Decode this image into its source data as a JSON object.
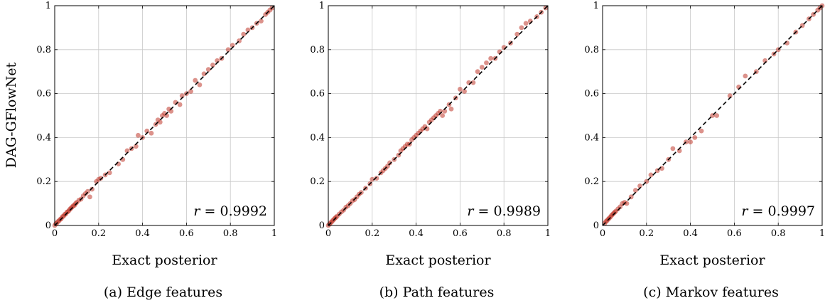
{
  "figure": {
    "ylabel": "DAG-GFlowNet",
    "xlabel": "Exact posterior",
    "point_color": "#c0392b",
    "diag_color": "#000000",
    "grid_color": "#c8c8c8"
  },
  "chart_data": [
    {
      "type": "scatter",
      "caption": "(a) Edge features",
      "xlabel": "Exact posterior",
      "ylabel": "DAG-GFlowNet",
      "xlim": [
        0,
        1
      ],
      "ylim": [
        0,
        1
      ],
      "xticks": [
        "0",
        "0.2",
        "0.4",
        "0.6",
        "0.8",
        "1"
      ],
      "yticks": [
        "0",
        "0.2",
        "0.4",
        "0.6",
        "0.8",
        "1"
      ],
      "grid": true,
      "diagonal": true,
      "annotation": "r = 0.9992",
      "points": [
        [
          0.0,
          0.0
        ],
        [
          0.005,
          0.008
        ],
        [
          0.01,
          0.012
        ],
        [
          0.015,
          0.018
        ],
        [
          0.02,
          0.022
        ],
        [
          0.025,
          0.028
        ],
        [
          0.03,
          0.031
        ],
        [
          0.035,
          0.04
        ],
        [
          0.04,
          0.042
        ],
        [
          0.045,
          0.05
        ],
        [
          0.05,
          0.052
        ],
        [
          0.055,
          0.06
        ],
        [
          0.06,
          0.063
        ],
        [
          0.065,
          0.068
        ],
        [
          0.07,
          0.075
        ],
        [
          0.075,
          0.079
        ],
        [
          0.08,
          0.085
        ],
        [
          0.085,
          0.09
        ],
        [
          0.09,
          0.092
        ],
        [
          0.095,
          0.1
        ],
        [
          0.1,
          0.105
        ],
        [
          0.11,
          0.115
        ],
        [
          0.12,
          0.12
        ],
        [
          0.13,
          0.135
        ],
        [
          0.14,
          0.145
        ],
        [
          0.15,
          0.155
        ],
        [
          0.16,
          0.13
        ],
        [
          0.17,
          0.165
        ],
        [
          0.19,
          0.2
        ],
        [
          0.2,
          0.21
        ],
        [
          0.21,
          0.215
        ],
        [
          0.23,
          0.23
        ],
        [
          0.25,
          0.24
        ],
        [
          0.29,
          0.28
        ],
        [
          0.31,
          0.3
        ],
        [
          0.33,
          0.34
        ],
        [
          0.35,
          0.35
        ],
        [
          0.37,
          0.36
        ],
        [
          0.38,
          0.41
        ],
        [
          0.4,
          0.4
        ],
        [
          0.42,
          0.43
        ],
        [
          0.44,
          0.42
        ],
        [
          0.46,
          0.46
        ],
        [
          0.47,
          0.48
        ],
        [
          0.48,
          0.47
        ],
        [
          0.49,
          0.5
        ],
        [
          0.5,
          0.51
        ],
        [
          0.51,
          0.5
        ],
        [
          0.52,
          0.53
        ],
        [
          0.53,
          0.52
        ],
        [
          0.55,
          0.56
        ],
        [
          0.57,
          0.55
        ],
        [
          0.58,
          0.59
        ],
        [
          0.6,
          0.6
        ],
        [
          0.62,
          0.61
        ],
        [
          0.64,
          0.66
        ],
        [
          0.66,
          0.64
        ],
        [
          0.68,
          0.69
        ],
        [
          0.7,
          0.71
        ],
        [
          0.72,
          0.73
        ],
        [
          0.74,
          0.75
        ],
        [
          0.76,
          0.76
        ],
        [
          0.79,
          0.8
        ],
        [
          0.81,
          0.82
        ],
        [
          0.84,
          0.84
        ],
        [
          0.86,
          0.87
        ],
        [
          0.88,
          0.89
        ],
        [
          0.9,
          0.9
        ],
        [
          0.92,
          0.92
        ],
        [
          0.94,
          0.93
        ],
        [
          0.96,
          0.96
        ],
        [
          0.97,
          0.97
        ],
        [
          0.98,
          0.98
        ],
        [
          0.99,
          0.99
        ]
      ]
    },
    {
      "type": "scatter",
      "caption": "(b) Path features",
      "xlabel": "Exact posterior",
      "ylabel": "",
      "xlim": [
        0,
        1
      ],
      "ylim": [
        0,
        1
      ],
      "xticks": [
        "0",
        "0.2",
        "0.4",
        "0.6",
        "0.8",
        "1"
      ],
      "yticks": [
        "0",
        "0.2",
        "0.4",
        "0.6",
        "0.8",
        "1"
      ],
      "grid": true,
      "diagonal": true,
      "annotation": "r = 0.9989",
      "points": [
        [
          0.0,
          0.0
        ],
        [
          0.005,
          0.006
        ],
        [
          0.01,
          0.012
        ],
        [
          0.015,
          0.016
        ],
        [
          0.02,
          0.022
        ],
        [
          0.025,
          0.027
        ],
        [
          0.03,
          0.033
        ],
        [
          0.035,
          0.037
        ],
        [
          0.04,
          0.042
        ],
        [
          0.05,
          0.052
        ],
        [
          0.06,
          0.062
        ],
        [
          0.07,
          0.07
        ],
        [
          0.08,
          0.083
        ],
        [
          0.09,
          0.09
        ],
        [
          0.1,
          0.1
        ],
        [
          0.11,
          0.112
        ],
        [
          0.12,
          0.118
        ],
        [
          0.13,
          0.13
        ],
        [
          0.14,
          0.142
        ],
        [
          0.15,
          0.15
        ],
        [
          0.17,
          0.17
        ],
        [
          0.19,
          0.19
        ],
        [
          0.2,
          0.21
        ],
        [
          0.22,
          0.215
        ],
        [
          0.24,
          0.24
        ],
        [
          0.25,
          0.25
        ],
        [
          0.26,
          0.26
        ],
        [
          0.27,
          0.27
        ],
        [
          0.28,
          0.285
        ],
        [
          0.3,
          0.3
        ],
        [
          0.32,
          0.32
        ],
        [
          0.33,
          0.34
        ],
        [
          0.34,
          0.35
        ],
        [
          0.35,
          0.36
        ],
        [
          0.36,
          0.37
        ],
        [
          0.37,
          0.37
        ],
        [
          0.38,
          0.39
        ],
        [
          0.39,
          0.4
        ],
        [
          0.4,
          0.41
        ],
        [
          0.41,
          0.42
        ],
        [
          0.42,
          0.43
        ],
        [
          0.43,
          0.44
        ],
        [
          0.44,
          0.45
        ],
        [
          0.45,
          0.44
        ],
        [
          0.46,
          0.47
        ],
        [
          0.47,
          0.48
        ],
        [
          0.48,
          0.49
        ],
        [
          0.49,
          0.5
        ],
        [
          0.5,
          0.51
        ],
        [
          0.51,
          0.52
        ],
        [
          0.52,
          0.5
        ],
        [
          0.53,
          0.52
        ],
        [
          0.55,
          0.55
        ],
        [
          0.56,
          0.53
        ],
        [
          0.58,
          0.58
        ],
        [
          0.6,
          0.62
        ],
        [
          0.62,
          0.61
        ],
        [
          0.64,
          0.65
        ],
        [
          0.66,
          0.65
        ],
        [
          0.68,
          0.7
        ],
        [
          0.7,
          0.72
        ],
        [
          0.72,
          0.74
        ],
        [
          0.74,
          0.76
        ],
        [
          0.76,
          0.76
        ],
        [
          0.78,
          0.79
        ],
        [
          0.8,
          0.81
        ],
        [
          0.83,
          0.83
        ],
        [
          0.86,
          0.87
        ],
        [
          0.88,
          0.9
        ],
        [
          0.9,
          0.92
        ],
        [
          0.92,
          0.93
        ],
        [
          0.95,
          0.95
        ],
        [
          0.97,
          0.97
        ],
        [
          0.99,
          0.99
        ]
      ]
    },
    {
      "type": "scatter",
      "caption": "(c) Markov features",
      "xlabel": "Exact posterior",
      "ylabel": "",
      "xlim": [
        0,
        1
      ],
      "ylim": [
        0,
        1
      ],
      "xticks": [
        "0",
        "0.2",
        "0.4",
        "0.6",
        "0.8",
        "1"
      ],
      "yticks": [
        "0",
        "0.2",
        "0.4",
        "0.6",
        "0.8",
        "1"
      ],
      "grid": true,
      "diagonal": true,
      "annotation": "r = 0.9997",
      "points": [
        [
          0.01,
          0.01
        ],
        [
          0.015,
          0.018
        ],
        [
          0.02,
          0.022
        ],
        [
          0.025,
          0.028
        ],
        [
          0.03,
          0.033
        ],
        [
          0.035,
          0.038
        ],
        [
          0.04,
          0.045
        ],
        [
          0.045,
          0.05
        ],
        [
          0.05,
          0.055
        ],
        [
          0.055,
          0.06
        ],
        [
          0.06,
          0.065
        ],
        [
          0.07,
          0.075
        ],
        [
          0.08,
          0.085
        ],
        [
          0.09,
          0.1
        ],
        [
          0.1,
          0.105
        ],
        [
          0.11,
          0.1
        ],
        [
          0.13,
          0.13
        ],
        [
          0.15,
          0.16
        ],
        [
          0.17,
          0.18
        ],
        [
          0.2,
          0.2
        ],
        [
          0.22,
          0.23
        ],
        [
          0.25,
          0.25
        ],
        [
          0.27,
          0.26
        ],
        [
          0.3,
          0.3
        ],
        [
          0.32,
          0.35
        ],
        [
          0.35,
          0.34
        ],
        [
          0.38,
          0.38
        ],
        [
          0.4,
          0.38
        ],
        [
          0.42,
          0.4
        ],
        [
          0.45,
          0.43
        ],
        [
          0.5,
          0.5
        ],
        [
          0.52,
          0.5
        ],
        [
          0.58,
          0.59
        ],
        [
          0.62,
          0.63
        ],
        [
          0.65,
          0.68
        ],
        [
          0.7,
          0.7
        ],
        [
          0.74,
          0.75
        ],
        [
          0.78,
          0.78
        ],
        [
          0.8,
          0.8
        ],
        [
          0.84,
          0.83
        ],
        [
          0.88,
          0.88
        ],
        [
          0.91,
          0.91
        ],
        [
          0.94,
          0.94
        ],
        [
          0.96,
          0.96
        ],
        [
          0.98,
          0.98
        ],
        [
          0.99,
          0.99
        ],
        [
          1.0,
          1.0
        ]
      ]
    }
  ]
}
